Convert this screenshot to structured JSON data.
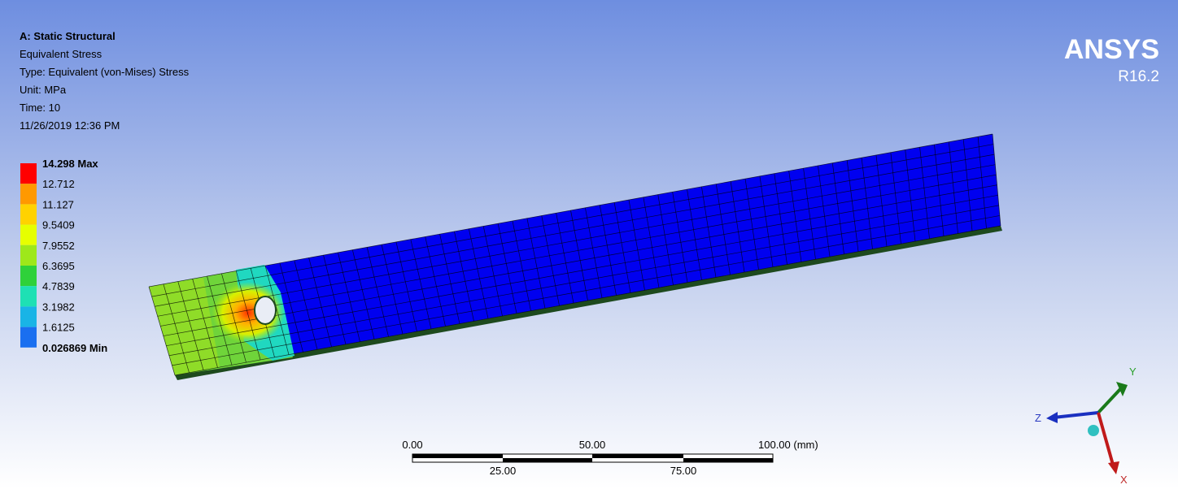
{
  "header": {
    "lines": [
      "A: Static Structural",
      "Equivalent Stress",
      "Type: Equivalent (von-Mises) Stress",
      "Unit: MPa",
      "Time: 10",
      "11/26/2019 12:36 PM"
    ]
  },
  "logo": {
    "name": "ANSYS",
    "version": "R16.2"
  },
  "legend": {
    "labels": [
      "14.298 Max",
      "12.712",
      "11.127",
      "9.5409",
      "7.9552",
      "6.3695",
      "4.7839",
      "3.1982",
      "1.6125",
      "0.026869 Min"
    ],
    "colors": [
      "#ff0000",
      "#ff9900",
      "#ffd200",
      "#e6ff00",
      "#9ee81a",
      "#2fd13a",
      "#1ee0b4",
      "#19b4e6",
      "#1a6ff0",
      "#0000ff"
    ]
  },
  "scale": {
    "top_labels": [
      "0.00",
      "50.00",
      "100.00 (mm)"
    ],
    "bottom_labels": [
      "25.00",
      "75.00"
    ]
  },
  "triad": {
    "x": "X",
    "y": "Y",
    "z": "Z"
  }
}
